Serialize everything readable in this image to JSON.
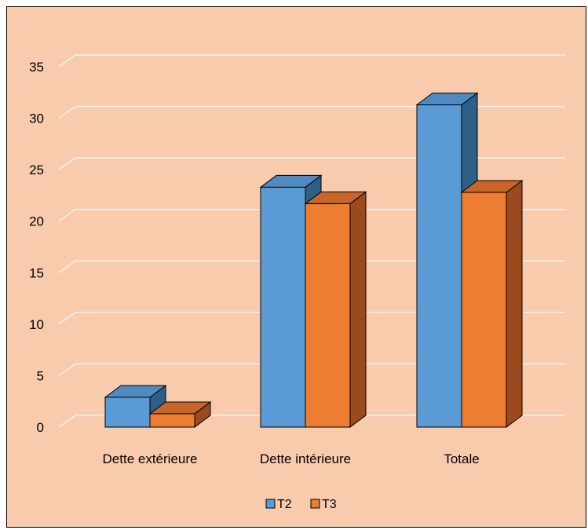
{
  "colors": {
    "background": "#F8CBAD",
    "grid": "#F2F2F2",
    "t2_front": "#5B9BD5",
    "t2_top": "#4F8AC3",
    "t2_side": "#2E5F86",
    "t3_front": "#ED7D31",
    "t3_top": "#C9652A",
    "t3_side": "#9A4A1D"
  },
  "chart_data": {
    "type": "bar",
    "style": "3d-clustered-column",
    "categories": [
      "Dette extérieure",
      "Dette intérieure",
      "Totale"
    ],
    "series": [
      {
        "name": "T2",
        "values": [
          2.9,
          23.3,
          31.3
        ]
      },
      {
        "name": "T3",
        "values": [
          1.3,
          21.7,
          22.8
        ]
      }
    ],
    "yticks": [
      "0",
      "5",
      "10",
      "15",
      "20",
      "25",
      "30",
      "35"
    ],
    "ylim": [
      0,
      35
    ],
    "grid": true,
    "legend_position": "bottom",
    "title": "",
    "xlabel": "",
    "ylabel": ""
  }
}
